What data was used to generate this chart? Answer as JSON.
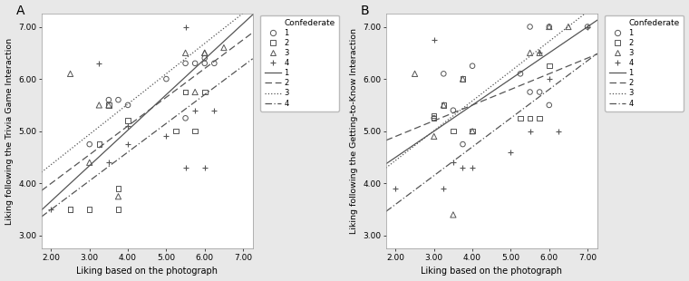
{
  "panel_A": {
    "title": "A",
    "xlabel": "Liking based on the photograph",
    "ylabel": "Liking following the Trivia Game Interaction",
    "xlim": [
      1.75,
      7.25
    ],
    "ylim": [
      2.75,
      7.25
    ],
    "xticks": [
      2.0,
      3.0,
      4.0,
      5.0,
      6.0,
      7.0
    ],
    "yticks": [
      3.0,
      4.0,
      5.0,
      6.0,
      7.0
    ],
    "confederates": {
      "1": {
        "x": [
          3.0,
          3.5,
          3.75,
          4.0,
          5.0,
          5.5,
          5.5,
          5.75,
          6.0,
          6.0,
          6.25
        ],
        "y": [
          4.75,
          5.6,
          5.6,
          5.5,
          6.0,
          5.25,
          6.3,
          6.3,
          6.3,
          6.4,
          6.3
        ]
      },
      "2": {
        "x": [
          2.5,
          2.5,
          3.0,
          3.25,
          3.5,
          3.75,
          3.75,
          4.0,
          5.25,
          5.5,
          5.5,
          5.75,
          6.0
        ],
        "y": [
          3.5,
          3.5,
          3.5,
          4.75,
          5.5,
          3.9,
          3.5,
          5.2,
          5.0,
          5.75,
          5.75,
          5.0,
          5.75
        ]
      },
      "3": {
        "x": [
          2.5,
          3.0,
          3.25,
          3.5,
          3.75,
          5.5,
          5.75,
          6.0,
          6.0,
          6.5
        ],
        "y": [
          6.1,
          4.4,
          5.5,
          5.5,
          3.75,
          6.5,
          5.75,
          6.5,
          6.5,
          6.6
        ]
      },
      "4": {
        "x": [
          2.0,
          3.25,
          3.5,
          4.0,
          4.0,
          5.0,
          5.5,
          5.5,
          5.75,
          6.0,
          6.25
        ],
        "y": [
          3.5,
          6.3,
          4.4,
          4.75,
          5.1,
          4.9,
          4.3,
          7.0,
          5.4,
          4.3,
          5.4
        ]
      }
    },
    "regression_lines": {
      "1": {
        "slope": 0.68,
        "intercept": 2.3
      },
      "2": {
        "slope": 0.55,
        "intercept": 2.9
      },
      "3": {
        "slope": 0.58,
        "intercept": 3.2
      },
      "4": {
        "slope": 0.55,
        "intercept": 2.4
      }
    }
  },
  "panel_B": {
    "title": "B",
    "xlabel": "Liking based on the photograph",
    "ylabel": "Liking following the Getting-to-Know Interaction",
    "xlim": [
      1.75,
      7.25
    ],
    "ylim": [
      2.75,
      7.25
    ],
    "xticks": [
      2.0,
      3.0,
      4.0,
      5.0,
      6.0,
      7.0
    ],
    "yticks": [
      3.0,
      4.0,
      5.0,
      6.0,
      7.0
    ],
    "confederates": {
      "1": {
        "x": [
          3.0,
          3.25,
          3.5,
          3.75,
          4.0,
          5.25,
          5.5,
          5.5,
          5.75,
          6.0,
          6.0,
          7.0
        ],
        "y": [
          5.25,
          6.1,
          5.4,
          4.75,
          6.25,
          6.1,
          5.75,
          7.0,
          5.75,
          5.5,
          7.0,
          7.0
        ]
      },
      "2": {
        "x": [
          3.0,
          3.0,
          3.25,
          3.5,
          3.75,
          4.0,
          5.25,
          5.5,
          5.75,
          6.0
        ],
        "y": [
          5.25,
          5.3,
          5.5,
          5.0,
          6.0,
          5.0,
          5.25,
          5.25,
          5.25,
          6.25
        ]
      },
      "3": {
        "x": [
          2.5,
          3.0,
          3.25,
          3.5,
          3.75,
          4.0,
          5.5,
          5.75,
          6.0,
          6.5
        ],
        "y": [
          6.1,
          4.9,
          5.5,
          3.4,
          6.0,
          5.0,
          6.5,
          6.5,
          7.0,
          7.0
        ]
      },
      "4": {
        "x": [
          2.0,
          3.0,
          3.25,
          3.5,
          3.75,
          4.0,
          5.0,
          5.5,
          5.75,
          6.0,
          6.25,
          7.0
        ],
        "y": [
          3.9,
          6.75,
          3.9,
          4.4,
          4.3,
          4.3,
          4.6,
          5.0,
          6.5,
          6.0,
          5.0,
          7.0
        ]
      }
    },
    "regression_lines": {
      "1": {
        "slope": 0.5,
        "intercept": 3.5
      },
      "2": {
        "slope": 0.3,
        "intercept": 4.3
      },
      "3": {
        "slope": 0.57,
        "intercept": 3.3
      },
      "4": {
        "slope": 0.55,
        "intercept": 2.5
      }
    }
  },
  "markers": {
    "1": "o",
    "2": "s",
    "3": "^",
    "4": "+"
  },
  "line_styles": {
    "1": "-",
    "2": "--",
    "3": ":",
    "4": "-."
  },
  "color": "#555555",
  "bg_color": "#e8e8e8",
  "plot_bg": "#ffffff"
}
